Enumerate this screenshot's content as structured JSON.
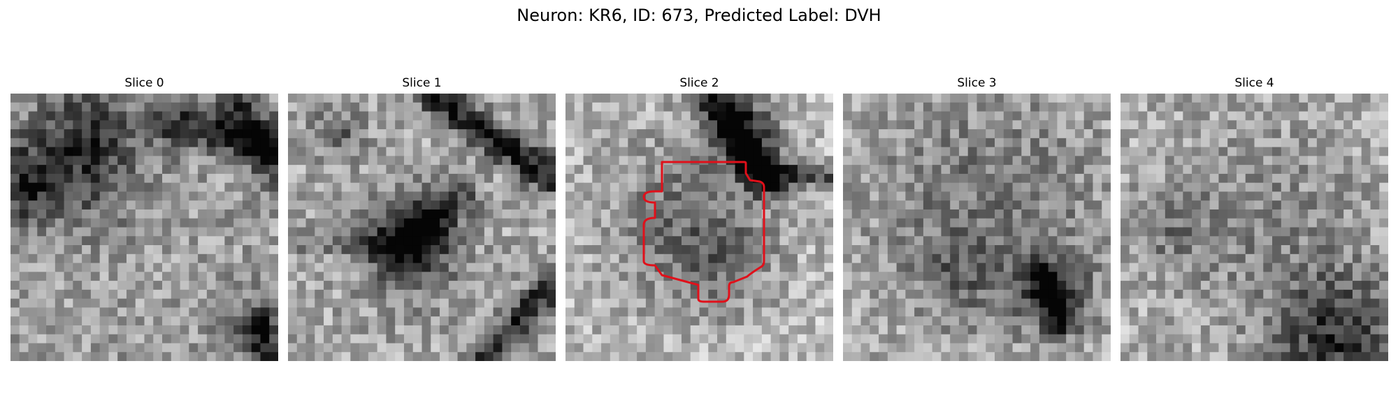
{
  "figure": {
    "title": "Neuron: KR6, ID: 673, Predicted Label: DVH"
  },
  "overlay_color": "#e0101a",
  "panels": [
    {
      "title": "Slice 0"
    },
    {
      "title": "Slice 1"
    },
    {
      "title": "Slice 2"
    },
    {
      "title": "Slice 3"
    },
    {
      "title": "Slice 4"
    }
  ]
}
